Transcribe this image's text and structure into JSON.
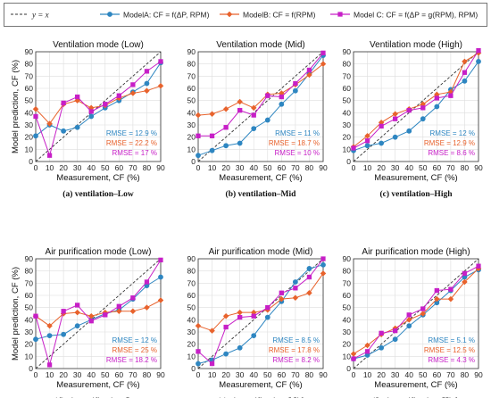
{
  "legend": {
    "line_label": "y = x",
    "position": "top",
    "entries": [
      {
        "label": "ModelA: CF = f(ΔP, RPM)",
        "color": "#2E86C1",
        "marker": "circle"
      },
      {
        "label": "ModelB: CF = f(RPM)",
        "color": "#E8622C",
        "marker": "diamond"
      },
      {
        "label": "Model C: CF = f(ΔP = g(RPM), RPM)",
        "color": "#C71FC7",
        "marker": "square"
      }
    ]
  },
  "colors": {
    "model_a": "#2E86C1",
    "model_b": "#E8622C",
    "model_c": "#C71FC7",
    "identity": "#333333"
  },
  "chart_data": [
    {
      "type": "line",
      "title": "Ventilation mode (Low)",
      "caption_label": "(a)",
      "caption_text": "ventilation–Low",
      "xlabel": "Measurement, CF (%)",
      "ylabel": "Model prediction, CF (%)",
      "xlim": [
        0,
        90
      ],
      "ylim": [
        0,
        90
      ],
      "xticks": [
        0,
        10,
        20,
        30,
        40,
        50,
        60,
        70,
        80,
        90
      ],
      "yticks": [
        0,
        10,
        20,
        30,
        40,
        50,
        60,
        70,
        80,
        90
      ],
      "grid": true,
      "x": [
        0,
        10,
        20,
        30,
        40,
        50,
        60,
        70,
        80,
        90
      ],
      "series": [
        {
          "name": "ModelA",
          "values": [
            21,
            30,
            25,
            28,
            37,
            44,
            50,
            57,
            64,
            81
          ]
        },
        {
          "name": "ModelB",
          "values": [
            43,
            31,
            47,
            50,
            44,
            46,
            52,
            56,
            58,
            62
          ]
        },
        {
          "name": "Model C",
          "values": [
            37,
            5,
            48,
            53,
            41,
            47,
            54,
            63,
            74,
            82
          ]
        }
      ],
      "rmse": [
        "RMSE = 12.9 %",
        "RMSE = 22.2 %",
        "RMSE = 17 %"
      ]
    },
    {
      "type": "line",
      "title": "Ventilation mode (Mid)",
      "caption_label": "(b)",
      "caption_text": "ventilation–Mid",
      "xlabel": "Measurement, CF (%)",
      "ylabel": "",
      "xlim": [
        0,
        90
      ],
      "ylim": [
        0,
        90
      ],
      "xticks": [
        0,
        10,
        20,
        30,
        40,
        50,
        60,
        70,
        80,
        90
      ],
      "yticks": [
        0,
        10,
        20,
        30,
        40,
        50,
        60,
        70,
        80,
        90
      ],
      "grid": true,
      "x": [
        0,
        10,
        20,
        30,
        40,
        50,
        60,
        70,
        80,
        90
      ],
      "series": [
        {
          "name": "ModelA",
          "values": [
            5,
            9,
            13,
            15,
            27,
            34,
            47,
            58,
            72,
            87
          ]
        },
        {
          "name": "ModelB",
          "values": [
            38,
            39,
            43,
            49,
            44,
            55,
            56,
            63,
            71,
            80
          ]
        },
        {
          "name": "Model C",
          "values": [
            21,
            21,
            28,
            42,
            38,
            54,
            53,
            64,
            75,
            89
          ]
        }
      ],
      "rmse": [
        "RMSE = 11 %",
        "RMSE = 18.7 %",
        "RMSE = 10 %"
      ]
    },
    {
      "type": "line",
      "title": "Ventilation mode (High)",
      "caption_label": "(c)",
      "caption_text": "ventilation–High",
      "xlabel": "Measurement, CF (%)",
      "ylabel": "",
      "xlim": [
        0,
        90
      ],
      "ylim": [
        0,
        90
      ],
      "xticks": [
        0,
        10,
        20,
        30,
        40,
        50,
        60,
        70,
        80,
        90
      ],
      "yticks": [
        0,
        10,
        20,
        30,
        40,
        50,
        60,
        70,
        80,
        90
      ],
      "grid": true,
      "x": [
        0,
        10,
        20,
        30,
        40,
        50,
        60,
        70,
        80,
        90
      ],
      "series": [
        {
          "name": "ModelA",
          "values": [
            9,
            13,
            15,
            20,
            25,
            35,
            45,
            59,
            66,
            82
          ]
        },
        {
          "name": "ModelB",
          "values": [
            12,
            21,
            32,
            39,
            43,
            47,
            55,
            57,
            82,
            89
          ]
        },
        {
          "name": "Model C",
          "values": [
            11,
            17,
            29,
            35,
            42,
            44,
            52,
            54,
            73,
            91
          ]
        }
      ],
      "rmse": [
        "RMSE = 12 %",
        "RMSE = 12.9 %",
        "RMSE = 8.6 %"
      ]
    },
    {
      "type": "line",
      "title": "Air purification mode (Low)",
      "caption_label": "(d)",
      "caption_text": "air purification–Low",
      "xlabel": "Measurement, CF (%)",
      "ylabel": "Model prediction, CF (%)",
      "xlim": [
        0,
        90
      ],
      "ylim": [
        0,
        90
      ],
      "xticks": [
        0,
        10,
        20,
        30,
        40,
        50,
        60,
        70,
        80,
        90
      ],
      "yticks": [
        0,
        10,
        20,
        30,
        40,
        50,
        60,
        70,
        80,
        90
      ],
      "grid": true,
      "x": [
        0,
        10,
        20,
        30,
        40,
        50,
        60,
        70,
        80,
        90
      ],
      "series": [
        {
          "name": "ModelA",
          "values": [
            24,
            27,
            28,
            35,
            40,
            45,
            48,
            57,
            68,
            75
          ]
        },
        {
          "name": "ModelB",
          "values": [
            43,
            35,
            45,
            46,
            43,
            46,
            47,
            47,
            50,
            56
          ]
        },
        {
          "name": "Model C",
          "values": [
            43,
            3,
            47,
            52,
            39,
            44,
            51,
            58,
            71,
            89
          ]
        }
      ],
      "rmse": [
        "RMSE = 12 %",
        "RMSE = 25 %",
        "RMSE = 18.2 %"
      ]
    },
    {
      "type": "line",
      "title": "Air purification mode (Mid)",
      "caption_label": "(e)",
      "caption_text": "air purification–Mid",
      "xlabel": "Measurement, CF (%)",
      "ylabel": "",
      "xlim": [
        0,
        90
      ],
      "ylim": [
        0,
        90
      ],
      "xticks": [
        0,
        10,
        20,
        30,
        40,
        50,
        60,
        70,
        80,
        90
      ],
      "yticks": [
        0,
        10,
        20,
        30,
        40,
        50,
        60,
        70,
        80,
        90
      ],
      "grid": true,
      "x": [
        0,
        10,
        20,
        30,
        40,
        50,
        60,
        70,
        80,
        90
      ],
      "series": [
        {
          "name": "ModelA",
          "values": [
            4,
            7,
            12,
            17,
            27,
            42,
            55,
            71,
            82,
            85
          ]
        },
        {
          "name": "ModelB",
          "values": [
            35,
            31,
            43,
            46,
            46,
            48,
            57,
            58,
            62,
            78
          ]
        },
        {
          "name": "Model C",
          "values": [
            14,
            4,
            34,
            42,
            43,
            50,
            62,
            66,
            75,
            90
          ]
        }
      ],
      "rmse": [
        "RMSE = 8.5 %",
        "RMSE = 17.8 %",
        "RMSE = 8.2 %"
      ]
    },
    {
      "type": "line",
      "title": "Air purification mode (High)",
      "caption_label": "(f)",
      "caption_text": "air purification–High",
      "xlabel": "Measurement, CF (%)",
      "ylabel": "",
      "xlim": [
        0,
        90
      ],
      "ylim": [
        0,
        90
      ],
      "xticks": [
        0,
        10,
        20,
        30,
        40,
        50,
        60,
        70,
        80,
        90
      ],
      "yticks": [
        0,
        10,
        20,
        30,
        40,
        50,
        60,
        70,
        80,
        90
      ],
      "grid": true,
      "x": [
        0,
        10,
        20,
        30,
        40,
        50,
        60,
        70,
        80,
        90
      ],
      "series": [
        {
          "name": "ModelA",
          "values": [
            8,
            11,
            17,
            24,
            35,
            44,
            54,
            64,
            75,
            81
          ]
        },
        {
          "name": "ModelB",
          "values": [
            12,
            19,
            28,
            33,
            40,
            45,
            57,
            57,
            71,
            82
          ]
        },
        {
          "name": "Model C",
          "values": [
            8,
            14,
            29,
            31,
            44,
            49,
            64,
            65,
            78,
            84
          ]
        }
      ],
      "rmse": [
        "RMSE = 5.1 %",
        "RMSE = 12.5 %",
        "RMSE = 4.3 %"
      ]
    }
  ]
}
